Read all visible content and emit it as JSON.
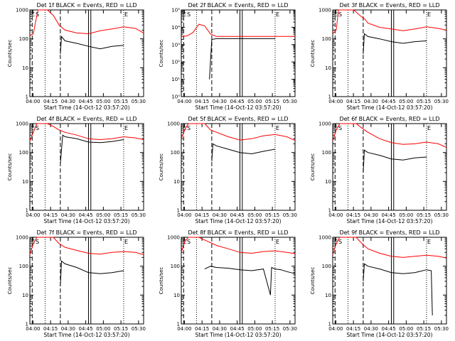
{
  "x_start_label": "Start Time (14-Oct-12 03:57:20)",
  "y_label": "Counts/sec",
  "x_ticks": [
    "04:00",
    "04:15",
    "04:30",
    "04:45",
    "05:00",
    "05:15",
    "05:30"
  ],
  "chart_data": [
    {
      "type": "line",
      "title": "Det 1f BLACK = Events, RED = LLD",
      "yscale": "log",
      "ylim": [
        1,
        1000
      ],
      "y_ticks": [
        "1",
        "10",
        "100",
        "1000"
      ],
      "series": [
        {
          "color": "#ff0000",
          "x": [
            0,
            3,
            5,
            7,
            10,
            15,
            20,
            25,
            30,
            40,
            50,
            60,
            70,
            80,
            90,
            97
          ],
          "y": [
            130,
            150,
            400,
            1000,
            1000,
            1000,
            650,
            300,
            200,
            160,
            150,
            190,
            220,
            260,
            230,
            160
          ]
        },
        {
          "color": "#000000",
          "x": [
            26,
            27,
            30,
            40,
            50,
            60,
            70,
            80
          ],
          "y": [
            30,
            120,
            85,
            70,
            55,
            45,
            55,
            60
          ]
        }
      ],
      "vlines": {
        "dash": [
          2,
          26
        ],
        "dot": [
          13,
          80
        ],
        "solid": [
          50,
          52
        ]
      }
    },
    {
      "type": "line",
      "title": "Det 2f BLACK = Events, RED = LLD",
      "yscale": "log",
      "ylim": [
        1,
        100000
      ],
      "y_ticks": [
        "10⁰",
        "10¹",
        "10²",
        "10³",
        "10⁴",
        "10⁵"
      ],
      "series": [
        {
          "color": "#ff0000",
          "x": [
            0,
            5,
            10,
            15,
            20,
            25,
            30,
            40,
            50,
            60,
            70,
            80,
            90,
            97
          ],
          "y": [
            3000,
            3200,
            5000,
            15000,
            12000,
            4000,
            3000,
            3000,
            3000,
            3000,
            3000,
            3000,
            3000,
            3000
          ]
        },
        {
          "color": "#000000",
          "x": [
            24,
            26,
            30,
            40,
            50,
            60,
            70,
            80
          ],
          "y": [
            10,
            2000,
            2200,
            2200,
            2200,
            2200,
            2200,
            2200
          ]
        }
      ],
      "vlines": {
        "dash": [
          2,
          26
        ],
        "dot": [
          13,
          80
        ],
        "solid": [
          50,
          52
        ]
      }
    },
    {
      "type": "line",
      "title": "Det 3f BLACK = Events, RED = LLD",
      "yscale": "log",
      "ylim": [
        1,
        1000
      ],
      "y_ticks": [
        "1",
        "10",
        "100",
        "1000"
      ],
      "series": [
        {
          "color": "#ff0000",
          "x": [
            0,
            3,
            5,
            8,
            12,
            18,
            24,
            27,
            30,
            40,
            50,
            60,
            70,
            80,
            90,
            97
          ],
          "y": [
            150,
            200,
            1000,
            1000,
            1000,
            1000,
            600,
            500,
            350,
            250,
            220,
            190,
            220,
            260,
            230,
            200
          ]
        },
        {
          "color": "#000000",
          "x": [
            26,
            27,
            30,
            40,
            50,
            60,
            70,
            80
          ],
          "y": [
            30,
            150,
            120,
            100,
            80,
            70,
            80,
            85
          ]
        }
      ],
      "vlines": {
        "dash": [
          2,
          26
        ],
        "dot": [
          13,
          80
        ],
        "solid": [
          50,
          52
        ]
      }
    },
    {
      "type": "line",
      "title": "Det 4f BLACK = Events, RED = LLD",
      "yscale": "log",
      "ylim": [
        1,
        1000
      ],
      "y_ticks": [
        "1",
        "10",
        "100",
        "1000"
      ],
      "series": [
        {
          "color": "#ff0000",
          "x": [
            0,
            3,
            6,
            10,
            15,
            20,
            25,
            30,
            40,
            50,
            60,
            70,
            80,
            90,
            97
          ],
          "y": [
            250,
            500,
            1000,
            1000,
            1000,
            800,
            600,
            500,
            400,
            300,
            280,
            300,
            350,
            320,
            280
          ]
        },
        {
          "color": "#000000",
          "x": [
            26,
            28,
            30,
            40,
            50,
            60,
            70,
            80
          ],
          "y": [
            40,
            400,
            350,
            300,
            230,
            220,
            240,
            280
          ]
        }
      ],
      "vlines": {
        "dash": [
          2,
          26
        ],
        "dot": [
          13,
          80
        ],
        "solid": [
          50,
          52
        ]
      }
    },
    {
      "type": "line",
      "title": "Det 5f BLACK = Events, RED = LLD",
      "yscale": "log",
      "ylim": [
        1,
        1000
      ],
      "y_ticks": [
        "1",
        "10",
        "100",
        "1000"
      ],
      "series": [
        {
          "color": "#ff0000",
          "x": [
            0,
            3,
            6,
            10,
            15,
            20,
            25,
            30,
            40,
            50,
            60,
            70,
            80,
            90,
            97
          ],
          "y": [
            300,
            600,
            1000,
            1000,
            1000,
            1000,
            600,
            500,
            350,
            270,
            300,
            380,
            420,
            350,
            260
          ]
        },
        {
          "color": "#000000",
          "x": [
            26,
            27,
            30,
            40,
            50,
            60,
            70,
            80
          ],
          "y": [
            50,
            200,
            170,
            130,
            100,
            90,
            110,
            130
          ]
        }
      ],
      "vlines": {
        "dash": [
          2,
          26
        ],
        "dot": [
          13,
          80
        ],
        "solid": [
          50,
          52
        ]
      }
    },
    {
      "type": "line",
      "title": "Det 6f BLACK = Events, RED = LLD",
      "yscale": "log",
      "ylim": [
        1,
        1000
      ],
      "y_ticks": [
        "1",
        "10",
        "100",
        "1000"
      ],
      "series": [
        {
          "color": "#ff0000",
          "x": [
            0,
            3,
            6,
            10,
            15,
            20,
            25,
            30,
            40,
            50,
            60,
            70,
            80,
            90,
            97
          ],
          "y": [
            250,
            600,
            1000,
            1000,
            1000,
            1000,
            700,
            500,
            300,
            220,
            190,
            200,
            230,
            200,
            150
          ]
        },
        {
          "color": "#000000",
          "x": [
            26,
            27,
            30,
            40,
            50,
            60,
            70,
            80
          ],
          "y": [
            20,
            120,
            100,
            80,
            60,
            55,
            65,
            70
          ]
        }
      ],
      "vlines": {
        "dash": [
          2,
          26
        ],
        "dot": [
          13,
          80
        ],
        "solid": [
          50,
          52
        ]
      }
    },
    {
      "type": "line",
      "title": "Det 7f BLACK = Events, RED = LLD",
      "yscale": "log",
      "ylim": [
        1,
        1000
      ],
      "y_ticks": [
        "1",
        "10",
        "100",
        "1000"
      ],
      "series": [
        {
          "color": "#ff0000",
          "x": [
            0,
            3,
            6,
            10,
            15,
            20,
            25,
            30,
            40,
            50,
            60,
            70,
            80,
            90,
            97
          ],
          "y": [
            250,
            600,
            1000,
            1000,
            1000,
            1000,
            600,
            450,
            350,
            280,
            260,
            300,
            320,
            300,
            250
          ]
        },
        {
          "color": "#000000",
          "x": [
            26,
            27,
            30,
            40,
            50,
            60,
            70,
            80
          ],
          "y": [
            20,
            150,
            120,
            90,
            60,
            55,
            60,
            70
          ]
        }
      ],
      "vlines": {
        "dash": [
          2,
          26
        ],
        "dot": [
          13,
          80
        ],
        "solid": [
          50,
          52
        ]
      }
    },
    {
      "type": "line",
      "title": "Det 8f BLACK = Events, RED = LLD",
      "yscale": "log",
      "ylim": [
        1,
        1000
      ],
      "y_ticks": [
        "1",
        "10",
        "100",
        "1000"
      ],
      "series": [
        {
          "color": "#ff0000",
          "x": [
            0,
            3,
            6,
            10,
            15,
            20,
            25,
            30,
            40,
            50,
            60,
            70,
            80,
            90,
            97
          ],
          "y": [
            300,
            700,
            1000,
            1000,
            1000,
            800,
            650,
            520,
            400,
            300,
            280,
            320,
            340,
            300,
            270
          ]
        },
        {
          "color": "#000000",
          "x": [
            20,
            25,
            30,
            40,
            50,
            60,
            70,
            76,
            77,
            80,
            85,
            90,
            97
          ],
          "y": [
            80,
            100,
            90,
            85,
            75,
            70,
            80,
            10,
            90,
            80,
            75,
            65,
            55
          ]
        }
      ],
      "vlines": {
        "dash": [
          2,
          26
        ],
        "dot": [
          13,
          80
        ],
        "solid": [
          50,
          52
        ]
      }
    },
    {
      "type": "line",
      "title": "Det 9f BLACK = Events, RED = LLD",
      "yscale": "log",
      "ylim": [
        1,
        1000
      ],
      "y_ticks": [
        "1",
        "10",
        "100",
        "1000"
      ],
      "series": [
        {
          "color": "#ff0000",
          "x": [
            0,
            3,
            6,
            10,
            15,
            20,
            25,
            30,
            40,
            50,
            60,
            70,
            80,
            90,
            97
          ],
          "y": [
            250,
            600,
            1000,
            1000,
            1000,
            1000,
            600,
            400,
            280,
            220,
            200,
            220,
            240,
            220,
            190
          ]
        },
        {
          "color": "#000000",
          "x": [
            26,
            27,
            30,
            40,
            50,
            60,
            70,
            80,
            84,
            85
          ],
          "y": [
            30,
            120,
            100,
            80,
            60,
            55,
            60,
            75,
            70,
            2
          ]
        }
      ],
      "vlines": {
        "dash": [
          2,
          26
        ],
        "dot": [
          13,
          80
        ],
        "solid": [
          50,
          52
        ]
      }
    }
  ]
}
